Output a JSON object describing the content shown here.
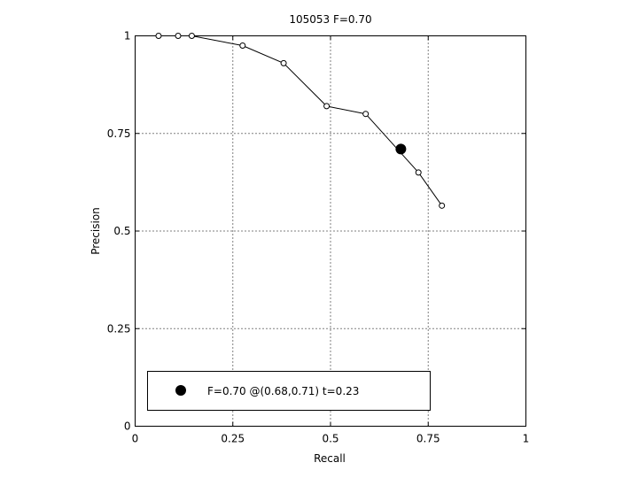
{
  "chart_data": {
    "type": "line",
    "title": "105053 F=0.70",
    "xlabel": "Recall",
    "ylabel": "Precision",
    "xlim": [
      0,
      1
    ],
    "ylim": [
      0,
      1
    ],
    "xticks": [
      0,
      0.25,
      0.5,
      0.75,
      1
    ],
    "xtick_labels": [
      "0",
      "0.25",
      "0.5",
      "0.75",
      "1"
    ],
    "yticks": [
      0,
      0.25,
      0.5,
      0.75,
      1
    ],
    "ytick_labels": [
      "0",
      "0.25",
      "0.5",
      "0.75",
      "1"
    ],
    "grid": true,
    "legend_placement": "bottom-left",
    "series": [
      {
        "x": [
          0.06,
          0.11,
          0.145,
          0.275,
          0.38,
          0.49,
          0.59,
          0.725,
          0.785
        ],
        "y": [
          1.0,
          1.0,
          1.0,
          0.975,
          0.93,
          0.82,
          0.8,
          0.65,
          0.565
        ],
        "marker": "open-circle",
        "color": "#000000"
      }
    ],
    "highlight": {
      "x": 0.68,
      "y": 0.71,
      "marker": "filled-circle",
      "color": "#000000",
      "label": "F=0.70 @(0.68,0.71) t=0.23"
    }
  }
}
